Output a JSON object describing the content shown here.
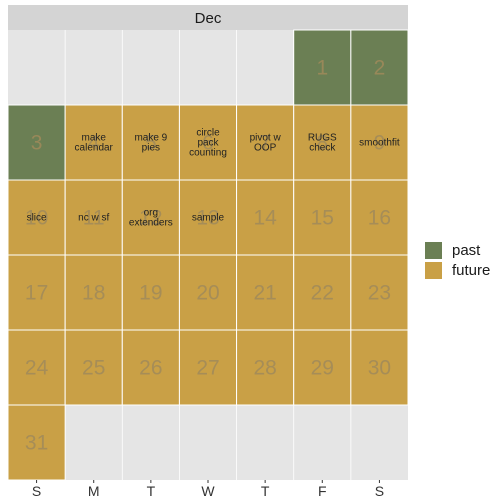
{
  "chart_data": {
    "type": "heatmap",
    "title": "",
    "facet_label": "Dec",
    "weekday_labels": [
      "S",
      "M",
      "T",
      "W",
      "T",
      "F",
      "S"
    ],
    "first_weekday_index": 5,
    "days_in_month": 31,
    "colors": {
      "past": "#6b7f54",
      "future": "#c9a046",
      "empty": "#e5e5e5",
      "strip": "#d4d4d4",
      "day_number": "#a08a5a"
    },
    "legend": [
      {
        "key": "past",
        "label": "past",
        "color": "#6b7f54"
      },
      {
        "key": "future",
        "label": "future",
        "color": "#c9a046"
      }
    ],
    "days": [
      {
        "day": 1,
        "status": "past",
        "task": ""
      },
      {
        "day": 2,
        "status": "past",
        "task": ""
      },
      {
        "day": 3,
        "status": "past",
        "task": ""
      },
      {
        "day": 4,
        "status": "future",
        "task": "make\ncalendar"
      },
      {
        "day": 5,
        "status": "future",
        "task": "make 9\npies"
      },
      {
        "day": 6,
        "status": "future",
        "task": "circle\npack\ncounting"
      },
      {
        "day": 7,
        "status": "future",
        "task": "pivot w\nOOP"
      },
      {
        "day": 8,
        "status": "future",
        "task": "RUGS\ncheck"
      },
      {
        "day": 9,
        "status": "future",
        "task": "smoothfit"
      },
      {
        "day": 10,
        "status": "future",
        "task": "slice"
      },
      {
        "day": 11,
        "status": "future",
        "task": "nc w sf"
      },
      {
        "day": 12,
        "status": "future",
        "task": "org\nextenders"
      },
      {
        "day": 13,
        "status": "future",
        "task": "sample"
      },
      {
        "day": 14,
        "status": "future",
        "task": ""
      },
      {
        "day": 15,
        "status": "future",
        "task": ""
      },
      {
        "day": 16,
        "status": "future",
        "task": ""
      },
      {
        "day": 17,
        "status": "future",
        "task": ""
      },
      {
        "day": 18,
        "status": "future",
        "task": ""
      },
      {
        "day": 19,
        "status": "future",
        "task": ""
      },
      {
        "day": 20,
        "status": "future",
        "task": ""
      },
      {
        "day": 21,
        "status": "future",
        "task": ""
      },
      {
        "day": 22,
        "status": "future",
        "task": ""
      },
      {
        "day": 23,
        "status": "future",
        "task": ""
      },
      {
        "day": 24,
        "status": "future",
        "task": ""
      },
      {
        "day": 25,
        "status": "future",
        "task": ""
      },
      {
        "day": 26,
        "status": "future",
        "task": ""
      },
      {
        "day": 27,
        "status": "future",
        "task": ""
      },
      {
        "day": 28,
        "status": "future",
        "task": ""
      },
      {
        "day": 29,
        "status": "future",
        "task": ""
      },
      {
        "day": 30,
        "status": "future",
        "task": ""
      },
      {
        "day": 31,
        "status": "future",
        "task": ""
      }
    ]
  }
}
